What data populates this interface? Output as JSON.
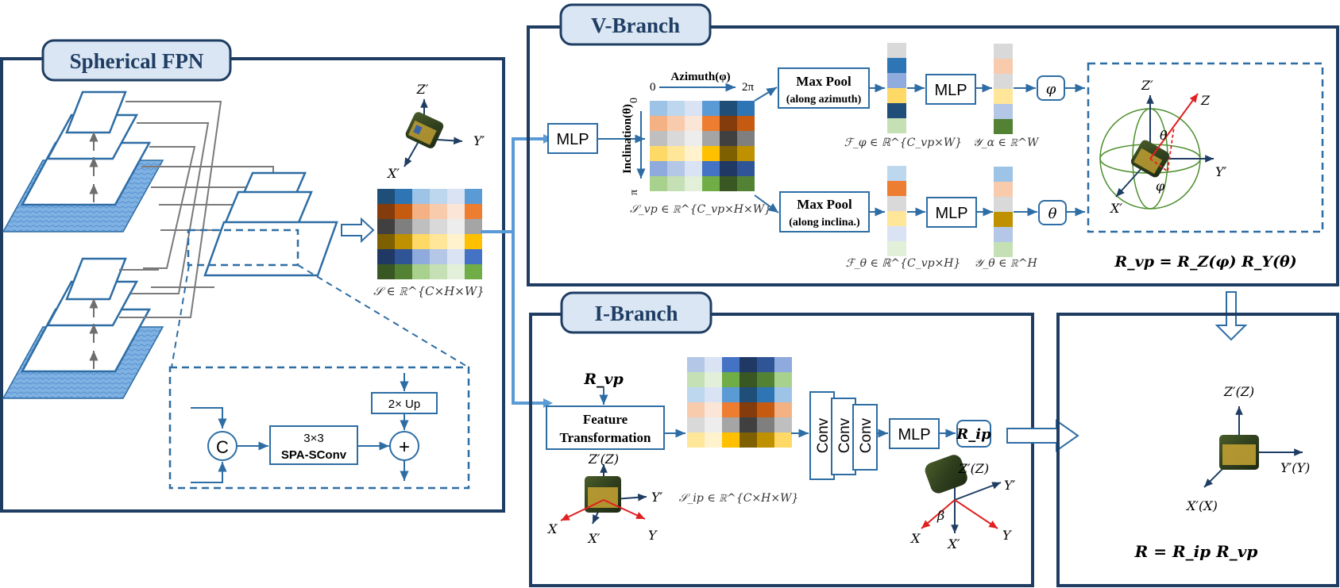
{
  "spherical_fpn": {
    "title": "Spherical FPN",
    "c_label": "C",
    "conv_line1": "3×3",
    "conv_line2": "SPA-SConv",
    "up_label": "2× Up",
    "plus_label": "+",
    "feature_label": "𝒮 ∈ ℝ^{C×H×W}",
    "axis_z": "Z′",
    "axis_y": "Y′",
    "axis_x": "X′"
  },
  "v_branch": {
    "title": "V-Branch",
    "mlp1": "MLP",
    "azimuth_label": "Azimuth(φ)",
    "azimuth_start": "0",
    "azimuth_end": "2π",
    "inclination_label": "Inclination(θ)",
    "inclination_start": "0",
    "inclination_end": "π",
    "svp_label": "𝒮_vp ∈ ℝ^{C_vp×H×W}",
    "maxpool_az_line1": "Max Pool",
    "maxpool_az_line2": "(along azimuth)",
    "maxpool_in_line1": "Max Pool",
    "maxpool_in_line2": "(along inclina.)",
    "f_phi_label": "ℱ_φ ∈ ℝ^{C_vp×W}",
    "f_theta_label": "ℱ_θ ∈ ℝ^{C_vp×H}",
    "mlp_top": "MLP",
    "mlp_bottom": "MLP",
    "y_alpha_label": "𝒴_α ∈ ℝ^W",
    "y_theta_label": "𝒴_θ ∈ ℝ^H",
    "phi_output": "φ",
    "theta_output": "θ",
    "axis_z": "Z′",
    "axis_z_world": "Z",
    "axis_y": "Y′",
    "axis_x": "X′",
    "angle_theta": "θ",
    "angle_phi": "φ",
    "rvp_equation": "R_vp = R_Z(φ) R_Y(θ)"
  },
  "i_branch": {
    "title": "I-Branch",
    "rvp_input": "R_vp",
    "feature_transform_line1": "Feature",
    "feature_transform_line2": "Transformation",
    "sip_label": "𝒮_ip ∈ ℝ^{C×H×W}",
    "conv1": "Conv",
    "conv2": "Conv",
    "conv3": "Conv",
    "mlp": "MLP",
    "rip_output": "R_ip",
    "left_axis_z": "Z′(Z)",
    "left_axis_y": "Y′",
    "left_axis_x": "X′",
    "left_axis_xw": "X",
    "left_axis_yw": "Y",
    "right_axis_z": "Z′(Z)",
    "right_axis_y": "Y′",
    "right_axis_x": "X′",
    "right_axis_xw": "X",
    "right_axis_yw": "Y",
    "angle_beta": "β"
  },
  "result": {
    "axis_z": "Z′(Z)",
    "axis_y": "Y′(Y)",
    "axis_x": "X′(X)",
    "equation": "R = R_ip R_vp"
  },
  "colors": {
    "frame": "#1f3d63",
    "accent": "#5b9bd5",
    "title_fill": "#dae6f3",
    "line": "#2e6da4"
  }
}
